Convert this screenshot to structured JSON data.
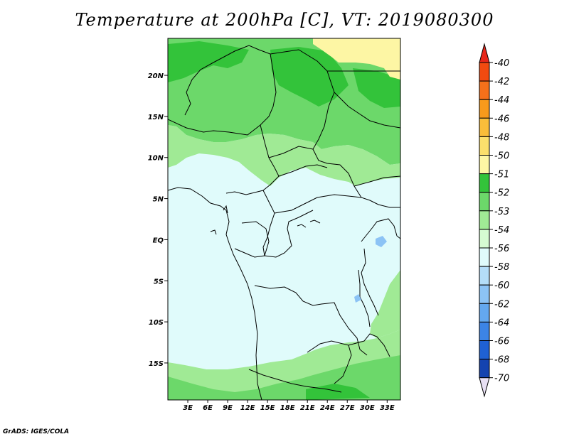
{
  "title": "Temperature at 200hPa [C], VT: 2019080300",
  "credit": "GrADS: IGES/COLA",
  "map": {
    "lat_ticks": [
      "20N",
      "15N",
      "10N",
      "5N",
      "EQ",
      "5S",
      "10S",
      "15S"
    ],
    "lat_values": [
      20,
      15,
      10,
      5,
      0,
      -5,
      -10,
      -15
    ],
    "lon_ticks": [
      "3E",
      "6E",
      "9E",
      "12E",
      "15E",
      "18E",
      "21E",
      "24E",
      "27E",
      "30E",
      "33E"
    ],
    "lon_values": [
      3,
      6,
      9,
      12,
      15,
      18,
      21,
      24,
      27,
      30,
      33
    ],
    "lat_range": [
      -19.5,
      24.5
    ],
    "lon_range": [
      0,
      35
    ]
  },
  "colorbar": {
    "labels": [
      "-40",
      "-42",
      "-44",
      "-46",
      "-48",
      "-50",
      "-51",
      "-52",
      "-53",
      "-54",
      "-56",
      "-58",
      "-60",
      "-62",
      "-64",
      "-66",
      "-68",
      "-70"
    ],
    "colors": [
      "#e8261a",
      "#f24a10",
      "#f5701a",
      "#f89a1c",
      "#f9bd3a",
      "#fbdf6c",
      "#fdf6a4",
      "#33c33a",
      "#6cd86a",
      "#a0ea95",
      "#d6fbd2",
      "#e0fbfb",
      "#b4ddf8",
      "#8cc3f5",
      "#64a8ef",
      "#3c84e6",
      "#1f61d3",
      "#1443b0",
      "#0a2a88",
      "#e8e0f4"
    ]
  }
}
